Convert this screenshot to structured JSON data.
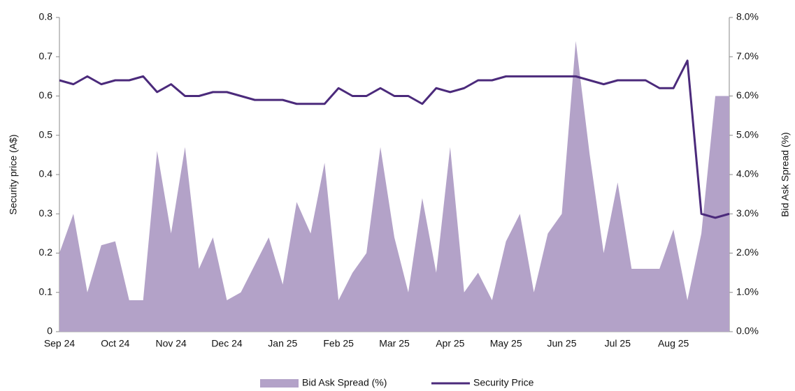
{
  "chart_data": {
    "type": "area-line",
    "categories": [
      "Sep 24",
      null,
      null,
      null,
      "Oct 24",
      null,
      null,
      null,
      "Nov 24",
      null,
      null,
      null,
      "Dec 24",
      null,
      null,
      null,
      "Jan 25",
      null,
      null,
      null,
      "Feb 25",
      null,
      null,
      null,
      "Mar 25",
      null,
      null,
      null,
      "Apr 25",
      null,
      null,
      null,
      "May 25",
      null,
      null,
      null,
      "Jun 25",
      null,
      null,
      null,
      "Jul 25",
      null,
      null,
      null,
      "Aug 25",
      null,
      null,
      null,
      null
    ],
    "series": [
      {
        "name": "Bid Ask Spread (%)",
        "color": "#b3a2c8",
        "axis": "y2",
        "kind": "area",
        "values": [
          2.0,
          3.0,
          1.0,
          2.2,
          2.3,
          0.8,
          0.8,
          4.6,
          2.5,
          4.7,
          1.6,
          2.4,
          0.8,
          1.0,
          1.7,
          2.4,
          1.2,
          3.3,
          2.5,
          4.3,
          0.8,
          1.5,
          2.0,
          4.7,
          2.4,
          1.0,
          3.4,
          1.5,
          4.7,
          1.0,
          1.5,
          0.8,
          2.3,
          3.0,
          1.0,
          2.5,
          3.0,
          7.4,
          4.5,
          2.0,
          3.8,
          1.6,
          1.6,
          1.6,
          2.6,
          0.8,
          2.5,
          6.0,
          6.0
        ]
      },
      {
        "name": "Security Price",
        "color": "#4b2a7b",
        "axis": "y",
        "kind": "line",
        "values": [
          0.64,
          0.63,
          0.65,
          0.63,
          0.64,
          0.64,
          0.65,
          0.61,
          0.63,
          0.6,
          0.6,
          0.61,
          0.61,
          0.6,
          0.59,
          0.59,
          0.59,
          0.58,
          0.58,
          0.58,
          0.62,
          0.6,
          0.6,
          0.62,
          0.6,
          0.6,
          0.58,
          0.62,
          0.61,
          0.62,
          0.64,
          0.64,
          0.65,
          0.65,
          0.65,
          0.65,
          0.65,
          0.65,
          0.64,
          0.63,
          0.64,
          0.64,
          0.64,
          0.62,
          0.62,
          0.69,
          0.3,
          0.29,
          0.3
        ]
      }
    ],
    "ylabel": "Security price (A$)",
    "y2label": "Bid Ask Spread (%)",
    "ylim": [
      0,
      0.8
    ],
    "yticks": [
      0,
      0.1,
      0.2,
      0.3,
      0.4,
      0.5,
      0.6,
      0.7,
      0.8
    ],
    "y2lim": [
      0,
      8
    ],
    "y2ticks": [
      {
        "value": 0,
        "label": "0.0%"
      },
      {
        "value": 1,
        "label": "1.0%"
      },
      {
        "value": 2,
        "label": "2.0%"
      },
      {
        "value": 3,
        "label": "3.0%"
      },
      {
        "value": 4,
        "label": "4.0%"
      },
      {
        "value": 5,
        "label": "5.0%"
      },
      {
        "value": 6,
        "label": "6.0%"
      },
      {
        "value": 7,
        "label": "7.0%"
      },
      {
        "value": 8,
        "label": "8.0%"
      }
    ],
    "legend": "bottom"
  }
}
